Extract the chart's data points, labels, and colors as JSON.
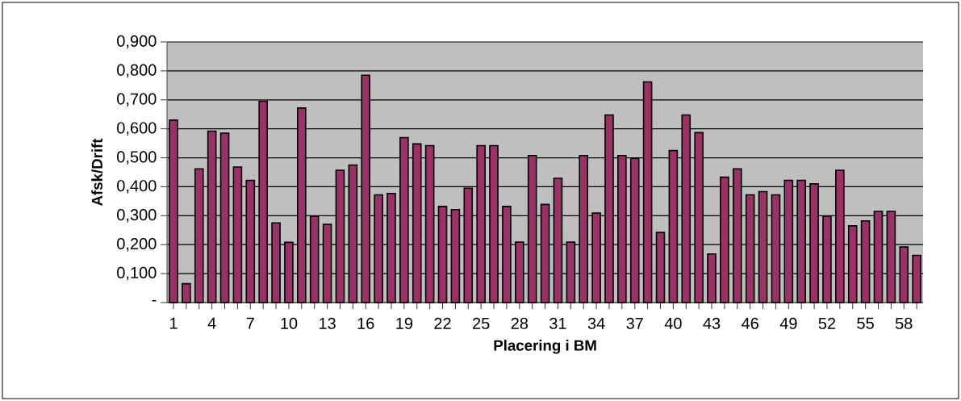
{
  "chart_data": {
    "type": "bar",
    "xlabel": "Placering i BM",
    "ylabel": "Afsk/Drift",
    "categories": [
      "1",
      null,
      null,
      "4",
      null,
      null,
      "7",
      null,
      null,
      "10",
      null,
      null,
      "13",
      null,
      null,
      "16",
      null,
      null,
      "19",
      null,
      null,
      "22",
      null,
      null,
      "25",
      null,
      null,
      "28",
      null,
      null,
      "31",
      null,
      null,
      "34",
      null,
      null,
      "37",
      null,
      null,
      "40",
      null,
      null,
      "43",
      null,
      null,
      "46",
      null,
      null,
      "49",
      null,
      null,
      "52",
      null,
      null,
      "55",
      null,
      null,
      "58",
      null
    ],
    "values": [
      0.63,
      0.065,
      0.462,
      0.592,
      0.585,
      0.468,
      0.422,
      0.695,
      0.275,
      0.208,
      0.672,
      0.298,
      0.27,
      0.457,
      0.475,
      0.785,
      0.372,
      0.377,
      0.57,
      0.548,
      0.542,
      0.332,
      0.321,
      0.395,
      0.542,
      0.542,
      0.332,
      0.209,
      0.508,
      0.339,
      0.429,
      0.209,
      0.508,
      0.309,
      0.648,
      0.508,
      0.498,
      0.762,
      0.242,
      0.525,
      0.648,
      0.587,
      0.168,
      0.433,
      0.462,
      0.372,
      0.383,
      0.372,
      0.422,
      0.422,
      0.41,
      0.298,
      0.457,
      0.265,
      0.282,
      0.315,
      0.315,
      0.192,
      0.163
    ],
    "color": "#993366",
    "ylim": [
      0,
      0.9
    ],
    "yticks": [
      {
        "value": 0,
        "label": "-"
      },
      {
        "value": 0.1,
        "label": "0,100"
      },
      {
        "value": 0.2,
        "label": "0,200"
      },
      {
        "value": 0.3,
        "label": "0,300"
      },
      {
        "value": 0.4,
        "label": "0,400"
      },
      {
        "value": 0.5,
        "label": "0,500"
      },
      {
        "value": 0.6,
        "label": "0,600"
      },
      {
        "value": 0.7,
        "label": "0,700"
      },
      {
        "value": 0.8,
        "label": "0,800"
      },
      {
        "value": 0.9,
        "label": "0,900"
      }
    ],
    "grid": "y"
  }
}
